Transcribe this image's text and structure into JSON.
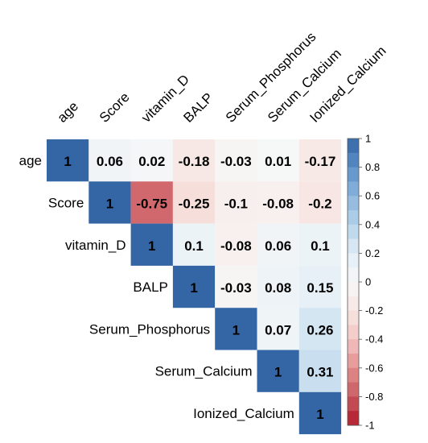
{
  "chart_data": {
    "type": "heatmap",
    "subtype": "correlation-matrix-upper",
    "variables": [
      "age",
      "Score",
      "vitamin_D",
      "BALP",
      "Serum_Phosphorus",
      "Serum_Calcium",
      "Ionized_Calcium"
    ],
    "matrix": [
      [
        1,
        0.06,
        0.02,
        -0.18,
        -0.03,
        0.01,
        -0.17
      ],
      [
        null,
        1,
        -0.75,
        -0.25,
        -0.1,
        -0.08,
        -0.2
      ],
      [
        null,
        null,
        1,
        0.1,
        -0.08,
        0.06,
        0.1
      ],
      [
        null,
        null,
        null,
        1,
        -0.03,
        0.08,
        0.15
      ],
      [
        null,
        null,
        null,
        null,
        1,
        0.07,
        0.26
      ],
      [
        null,
        null,
        null,
        null,
        null,
        1,
        0.31
      ],
      [
        null,
        null,
        null,
        null,
        null,
        null,
        1
      ]
    ],
    "value_labels": [
      [
        "1",
        "0.06",
        "0.02",
        "-0.18",
        "-0.03",
        "0.01",
        "-0.17"
      ],
      [
        null,
        "1",
        "-0.75",
        "-0.25",
        "-0.1",
        "-0.08",
        "-0.2"
      ],
      [
        null,
        null,
        "1",
        "0.1",
        "-0.08",
        "0.06",
        "0.1"
      ],
      [
        null,
        null,
        null,
        "1",
        "-0.03",
        "0.08",
        "0.15"
      ],
      [
        null,
        null,
        null,
        null,
        "1",
        "0.07",
        "0.26"
      ],
      [
        null,
        null,
        null,
        null,
        null,
        "1",
        "0.31"
      ],
      [
        null,
        null,
        null,
        null,
        null,
        null,
        "1"
      ]
    ],
    "colorbar": {
      "range": [
        -1,
        1
      ],
      "ticks": [
        "1",
        "0.8",
        "0.6",
        "0.4",
        "0.2",
        "0",
        "-0.2",
        "-0.4",
        "-0.6",
        "-0.8",
        "-1"
      ],
      "tick_values": [
        1,
        0.8,
        0.6,
        0.4,
        0.2,
        0,
        -0.2,
        -0.4,
        -0.6,
        -0.8,
        -1
      ],
      "positive_color": "#2166ac",
      "neutral_color": "#f7f7f7",
      "negative_color": "#b2182b"
    },
    "colors": {
      "diagonal": "#3465a4",
      "text": "#000000"
    },
    "title": "",
    "xlabel": "",
    "ylabel": "",
    "legend_position": "right"
  }
}
